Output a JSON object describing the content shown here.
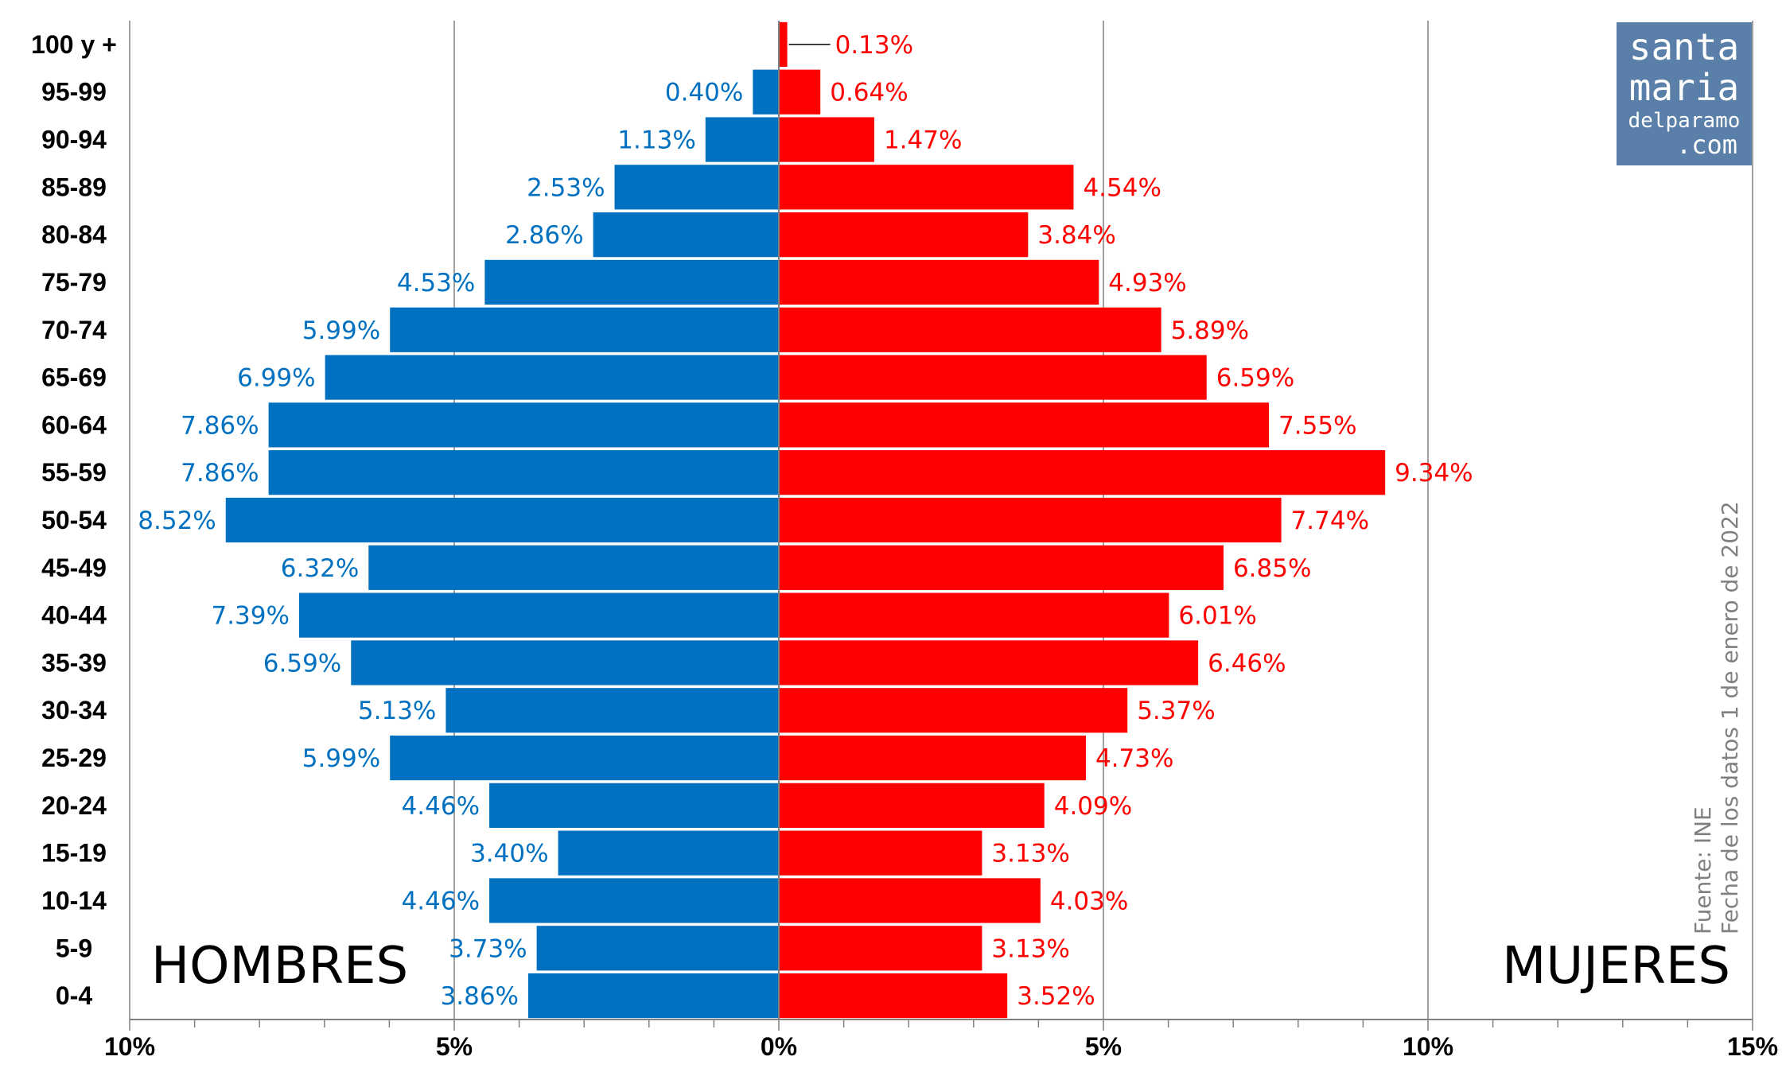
{
  "chart_data": {
    "type": "bar",
    "orientation": "horizontal",
    "categories": [
      "100 y +",
      "95-99",
      "90-94",
      "85-89",
      "80-84",
      "75-79",
      "70-74",
      "65-69",
      "60-64",
      "55-59",
      "50-54",
      "45-49",
      "40-44",
      "35-39",
      "30-34",
      "25-29",
      "20-24",
      "15-19",
      "10-14",
      "5-9",
      "0-4"
    ],
    "series": [
      {
        "name": "HOMBRES",
        "color": "#0070c0",
        "values": [
          0.0,
          0.4,
          1.13,
          2.53,
          2.86,
          4.53,
          5.99,
          6.99,
          7.86,
          7.86,
          8.52,
          6.32,
          7.39,
          6.59,
          5.13,
          5.99,
          4.46,
          3.4,
          4.46,
          3.73,
          3.86
        ],
        "labels": [
          "",
          "0.40%",
          "1.13%",
          "2.53%",
          "2.86%",
          "4.53%",
          "5.99%",
          "6.99%",
          "7.86%",
          "7.86%",
          "8.52%",
          "6.32%",
          "7.39%",
          "6.59%",
          "5.13%",
          "5.99%",
          "4.46%",
          "3.40%",
          "4.46%",
          "3.73%",
          "3.86%"
        ]
      },
      {
        "name": "MUJERES",
        "color": "#ff0000",
        "values": [
          0.13,
          0.64,
          1.47,
          4.54,
          3.84,
          4.93,
          5.89,
          6.59,
          7.55,
          9.34,
          7.74,
          6.85,
          6.01,
          6.46,
          5.37,
          4.73,
          4.09,
          3.13,
          4.03,
          3.13,
          3.52
        ],
        "labels": [
          "0.13%",
          "0.64%",
          "1.47%",
          "4.54%",
          "3.84%",
          "4.93%",
          "5.89%",
          "6.59%",
          "7.55%",
          "9.34%",
          "7.74%",
          "6.85%",
          "6.01%",
          "6.46%",
          "5.37%",
          "4.73%",
          "4.09%",
          "3.13%",
          "4.03%",
          "3.13%",
          "3.52%"
        ]
      }
    ],
    "xlim": [
      -10,
      15
    ],
    "x_ticks": [
      -10,
      -5,
      0,
      5,
      10,
      15
    ],
    "x_tick_labels": [
      "10%",
      "5%",
      "0%",
      "5%",
      "10%",
      "15%"
    ],
    "grid": true,
    "gridline_color": "#808080",
    "source_lines": [
      "Fuente: INE",
      "Fecha de los datos 1 de enero de 2022"
    ]
  },
  "logo": {
    "lines": [
      "santa",
      "maria",
      "delparamo",
      ".com"
    ],
    "background": "#5a7fa8"
  }
}
